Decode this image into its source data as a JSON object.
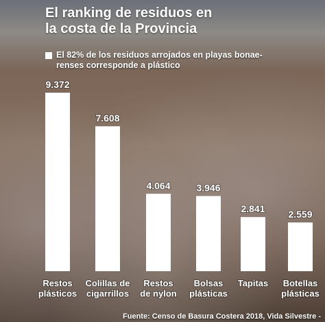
{
  "chart_data": {
    "type": "bar",
    "title": "El ranking de residuos en\nla costa de la Provincia",
    "subtitle": "El 82% de los residuos arrojados en playas bonae-\nrenses corresponde a plástico",
    "categories": [
      "Restos\nplásticos",
      "Colillas de\ncigarrillos",
      "Restos\nde nylon",
      "Bolsas\nplásticas",
      "Tapitas",
      "Botellas\nplásticas"
    ],
    "values": [
      9372,
      7608,
      4064,
      3946,
      2841,
      2559
    ],
    "value_labels": [
      "9.372",
      "7.608",
      "4.064",
      "3.946",
      "2.841",
      "2.559"
    ],
    "bar_color": "#ffffff",
    "source": "Fuente: Censo de Basura Costera 2018, Vida Silvestre -"
  }
}
